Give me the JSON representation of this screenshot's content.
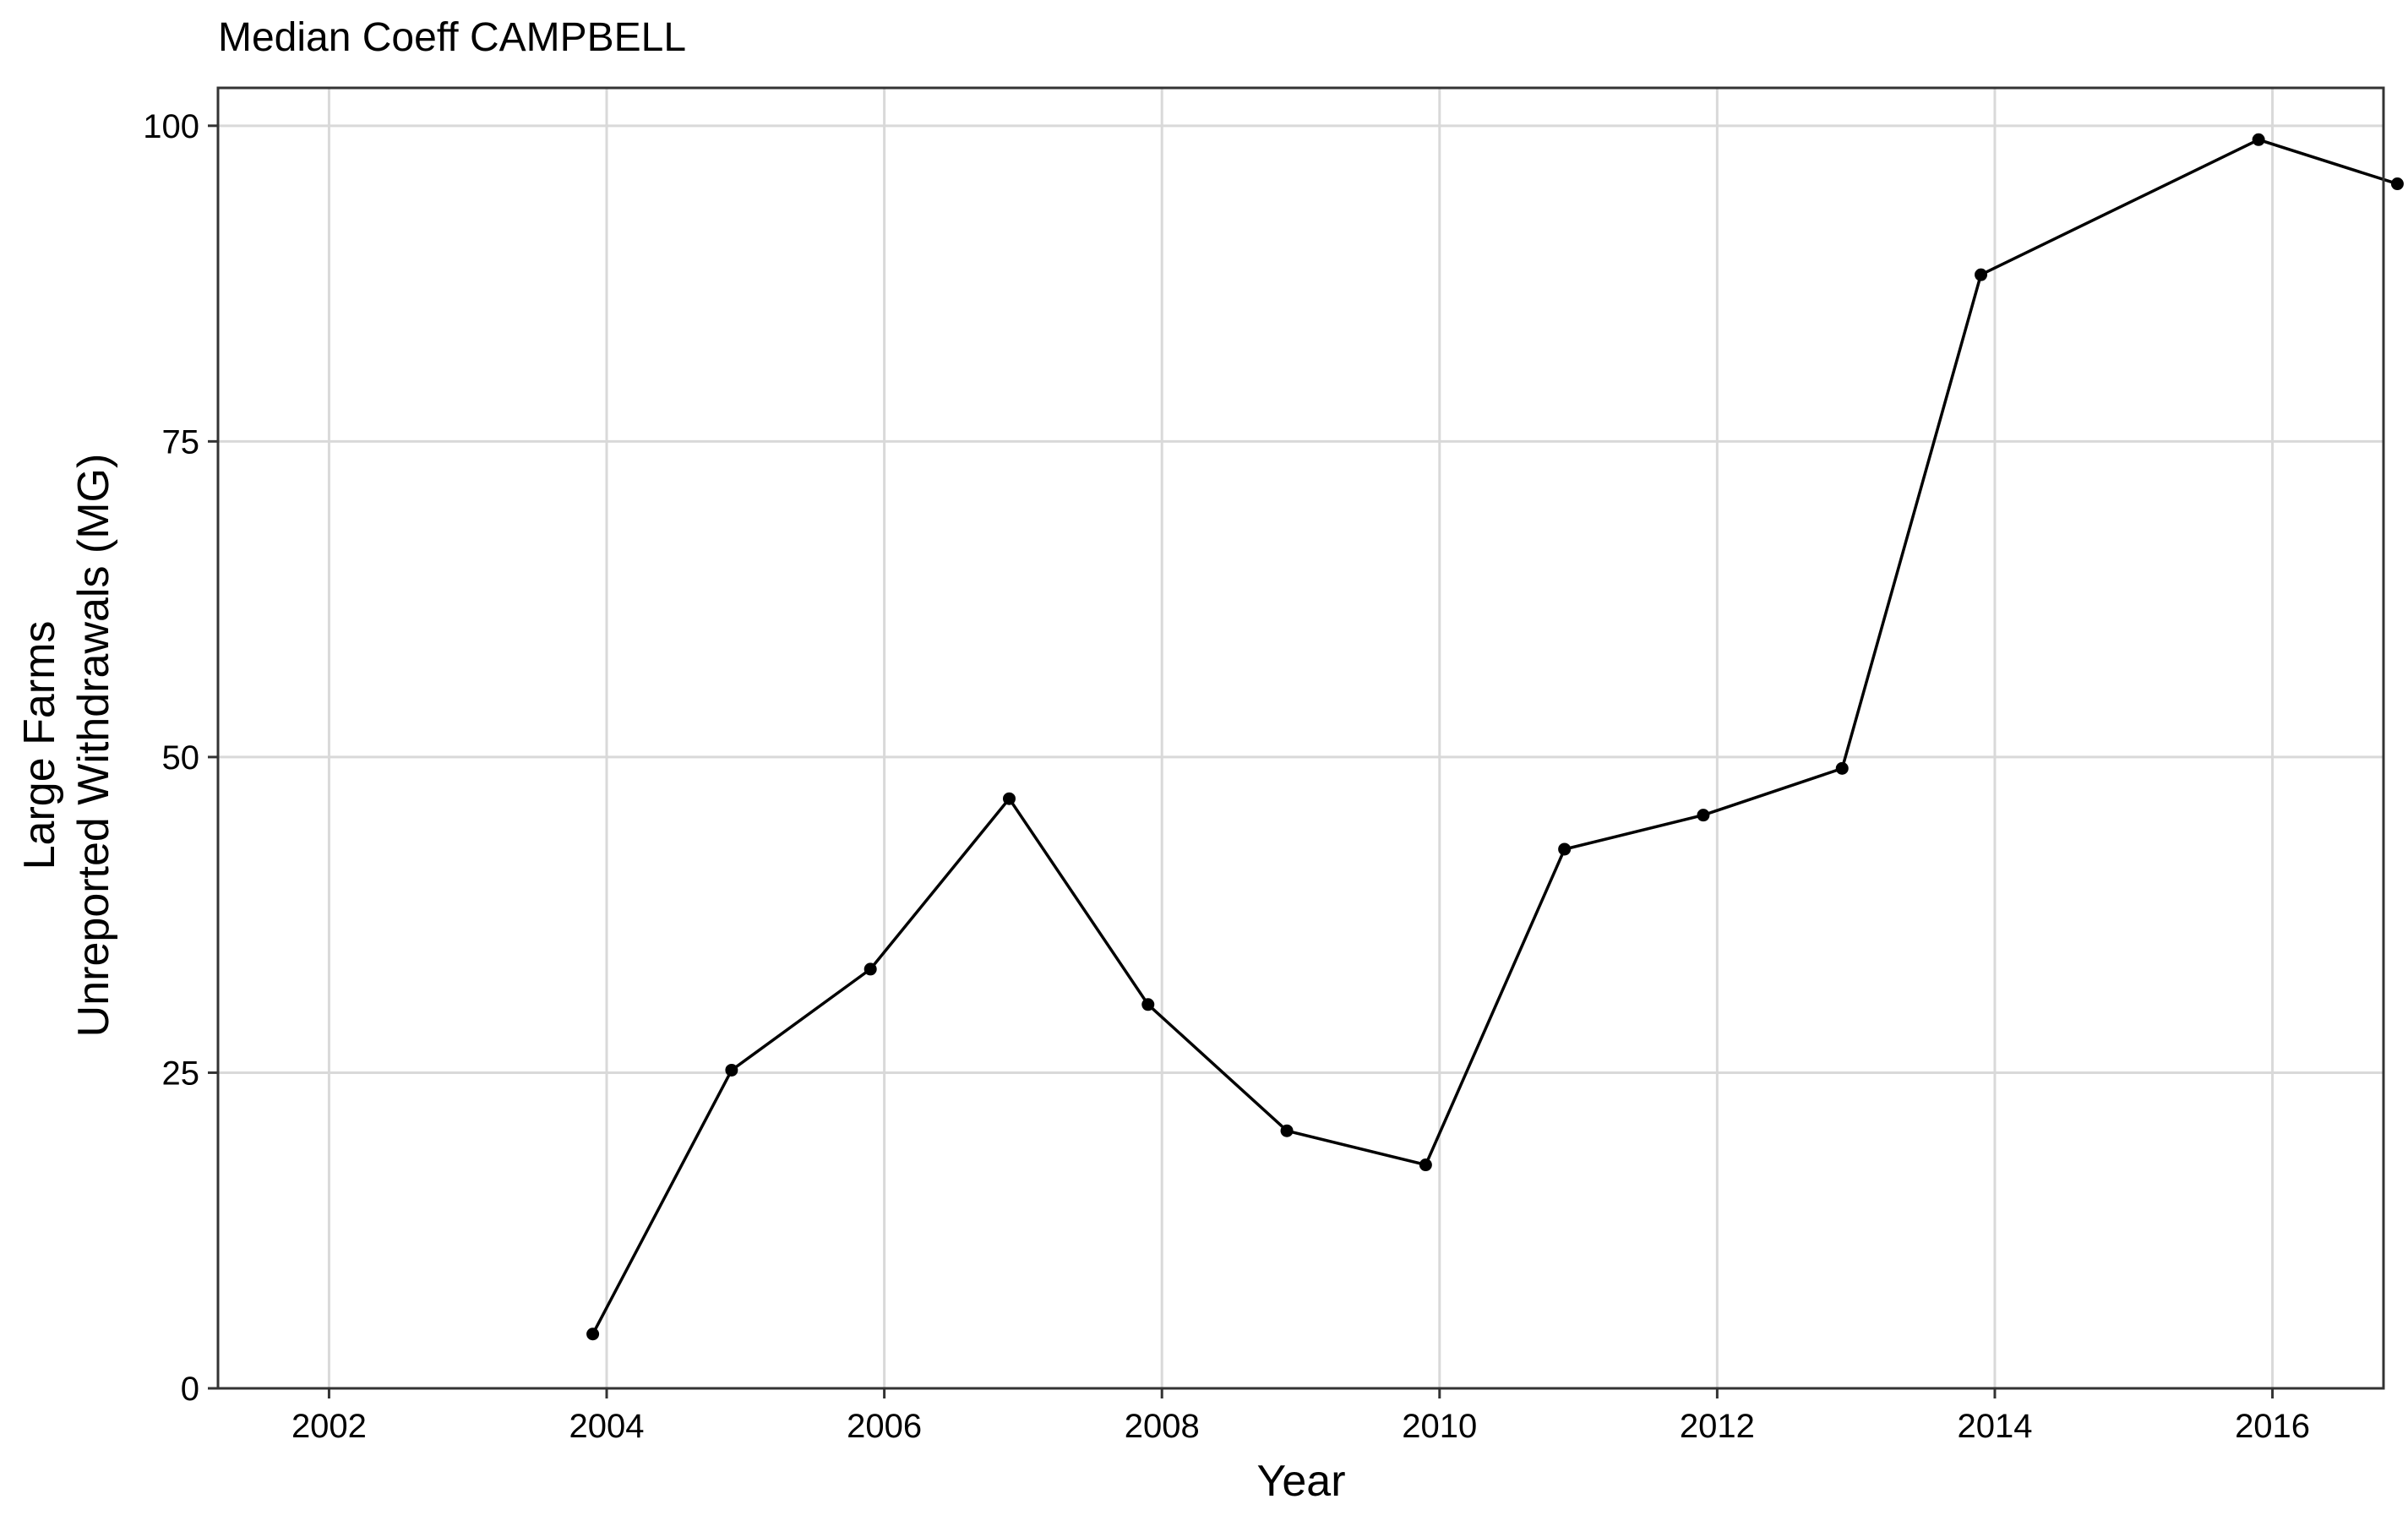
{
  "chart_data": {
    "type": "line",
    "title": "Median Coeff CAMPBELL",
    "xlabel": "Year",
    "ylabel_lines": [
      "Large Farms",
      "Unreported Withdrawals (MG)"
    ],
    "xlim": [
      2001.2,
      2016.8
    ],
    "ylim": [
      0,
      103
    ],
    "x_ticks": [
      2002,
      2004,
      2006,
      2008,
      2010,
      2012,
      2014,
      2016
    ],
    "y_ticks": [
      0,
      25,
      50,
      75,
      100
    ],
    "x_tick_labels": [
      "2002",
      "2004",
      "2006",
      "2008",
      "2010",
      "2012",
      "2014",
      "2016"
    ],
    "y_tick_labels": [
      "0",
      "25",
      "50",
      "75",
      "100"
    ],
    "grid": true,
    "series": [
      {
        "color": "#000000",
        "x": [
          2003.9,
          2004.9,
          2005.9,
          2006.9,
          2007.9,
          2008.9,
          2009.9,
          2010.9,
          2011.9,
          2012.9,
          2013.9,
          2015.9,
          2016.9
        ],
        "y": [
          4.3,
          25.2,
          33.2,
          46.7,
          30.4,
          20.4,
          17.7,
          42.7,
          45.4,
          49.1,
          88.2,
          98.9,
          95.4
        ]
      }
    ]
  }
}
